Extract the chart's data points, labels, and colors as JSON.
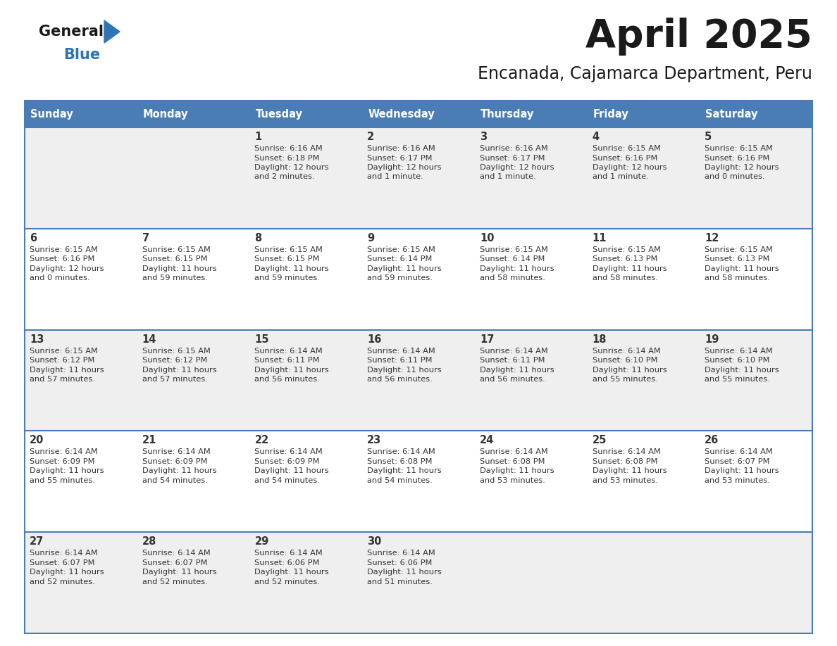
{
  "title": "April 2025",
  "subtitle": "Encanada, Cajamarca Department, Peru",
  "days_of_week": [
    "Sunday",
    "Monday",
    "Tuesday",
    "Wednesday",
    "Thursday",
    "Friday",
    "Saturday"
  ],
  "header_bg": "#4A7DB5",
  "header_text_color": "#FFFFFF",
  "row_bg_even": "#EFEFEF",
  "row_bg_odd": "#FFFFFF",
  "cell_text_color": "#333333",
  "border_color": "#4A7DB5",
  "title_color": "#1a1a1a",
  "subtitle_color": "#1a1a1a",
  "logo_general_color": "#1a1a1a",
  "logo_blue_color": "#2E75B6",
  "calendar_data": [
    [
      {
        "day": "",
        "sunrise": "",
        "sunset": "",
        "daylight_h": "",
        "daylight_m": ""
      },
      {
        "day": "",
        "sunrise": "",
        "sunset": "",
        "daylight_h": "",
        "daylight_m": ""
      },
      {
        "day": "1",
        "sunrise": "6:16 AM",
        "sunset": "6:18 PM",
        "daylight_h": "12",
        "daylight_m": "2"
      },
      {
        "day": "2",
        "sunrise": "6:16 AM",
        "sunset": "6:17 PM",
        "daylight_h": "12",
        "daylight_m": "1"
      },
      {
        "day": "3",
        "sunrise": "6:16 AM",
        "sunset": "6:17 PM",
        "daylight_h": "12",
        "daylight_m": "1"
      },
      {
        "day": "4",
        "sunrise": "6:15 AM",
        "sunset": "6:16 PM",
        "daylight_h": "12",
        "daylight_m": "1"
      },
      {
        "day": "5",
        "sunrise": "6:15 AM",
        "sunset": "6:16 PM",
        "daylight_h": "12",
        "daylight_m": "0"
      }
    ],
    [
      {
        "day": "6",
        "sunrise": "6:15 AM",
        "sunset": "6:16 PM",
        "daylight_h": "12",
        "daylight_m": "0"
      },
      {
        "day": "7",
        "sunrise": "6:15 AM",
        "sunset": "6:15 PM",
        "daylight_h": "11",
        "daylight_m": "59"
      },
      {
        "day": "8",
        "sunrise": "6:15 AM",
        "sunset": "6:15 PM",
        "daylight_h": "11",
        "daylight_m": "59"
      },
      {
        "day": "9",
        "sunrise": "6:15 AM",
        "sunset": "6:14 PM",
        "daylight_h": "11",
        "daylight_m": "59"
      },
      {
        "day": "10",
        "sunrise": "6:15 AM",
        "sunset": "6:14 PM",
        "daylight_h": "11",
        "daylight_m": "58"
      },
      {
        "day": "11",
        "sunrise": "6:15 AM",
        "sunset": "6:13 PM",
        "daylight_h": "11",
        "daylight_m": "58"
      },
      {
        "day": "12",
        "sunrise": "6:15 AM",
        "sunset": "6:13 PM",
        "daylight_h": "11",
        "daylight_m": "58"
      }
    ],
    [
      {
        "day": "13",
        "sunrise": "6:15 AM",
        "sunset": "6:12 PM",
        "daylight_h": "11",
        "daylight_m": "57"
      },
      {
        "day": "14",
        "sunrise": "6:15 AM",
        "sunset": "6:12 PM",
        "daylight_h": "11",
        "daylight_m": "57"
      },
      {
        "day": "15",
        "sunrise": "6:14 AM",
        "sunset": "6:11 PM",
        "daylight_h": "11",
        "daylight_m": "56"
      },
      {
        "day": "16",
        "sunrise": "6:14 AM",
        "sunset": "6:11 PM",
        "daylight_h": "11",
        "daylight_m": "56"
      },
      {
        "day": "17",
        "sunrise": "6:14 AM",
        "sunset": "6:11 PM",
        "daylight_h": "11",
        "daylight_m": "56"
      },
      {
        "day": "18",
        "sunrise": "6:14 AM",
        "sunset": "6:10 PM",
        "daylight_h": "11",
        "daylight_m": "55"
      },
      {
        "day": "19",
        "sunrise": "6:14 AM",
        "sunset": "6:10 PM",
        "daylight_h": "11",
        "daylight_m": "55"
      }
    ],
    [
      {
        "day": "20",
        "sunrise": "6:14 AM",
        "sunset": "6:09 PM",
        "daylight_h": "11",
        "daylight_m": "55"
      },
      {
        "day": "21",
        "sunrise": "6:14 AM",
        "sunset": "6:09 PM",
        "daylight_h": "11",
        "daylight_m": "54"
      },
      {
        "day": "22",
        "sunrise": "6:14 AM",
        "sunset": "6:09 PM",
        "daylight_h": "11",
        "daylight_m": "54"
      },
      {
        "day": "23",
        "sunrise": "6:14 AM",
        "sunset": "6:08 PM",
        "daylight_h": "11",
        "daylight_m": "54"
      },
      {
        "day": "24",
        "sunrise": "6:14 AM",
        "sunset": "6:08 PM",
        "daylight_h": "11",
        "daylight_m": "53"
      },
      {
        "day": "25",
        "sunrise": "6:14 AM",
        "sunset": "6:08 PM",
        "daylight_h": "11",
        "daylight_m": "53"
      },
      {
        "day": "26",
        "sunrise": "6:14 AM",
        "sunset": "6:07 PM",
        "daylight_h": "11",
        "daylight_m": "53"
      }
    ],
    [
      {
        "day": "27",
        "sunrise": "6:14 AM",
        "sunset": "6:07 PM",
        "daylight_h": "11",
        "daylight_m": "52"
      },
      {
        "day": "28",
        "sunrise": "6:14 AM",
        "sunset": "6:07 PM",
        "daylight_h": "11",
        "daylight_m": "52"
      },
      {
        "day": "29",
        "sunrise": "6:14 AM",
        "sunset": "6:06 PM",
        "daylight_h": "11",
        "daylight_m": "52"
      },
      {
        "day": "30",
        "sunrise": "6:14 AM",
        "sunset": "6:06 PM",
        "daylight_h": "11",
        "daylight_m": "51"
      },
      {
        "day": "",
        "sunrise": "",
        "sunset": "",
        "daylight_h": "",
        "daylight_m": ""
      },
      {
        "day": "",
        "sunrise": "",
        "sunset": "",
        "daylight_h": "",
        "daylight_m": ""
      },
      {
        "day": "",
        "sunrise": "",
        "sunset": "",
        "daylight_h": "",
        "daylight_m": ""
      }
    ]
  ]
}
